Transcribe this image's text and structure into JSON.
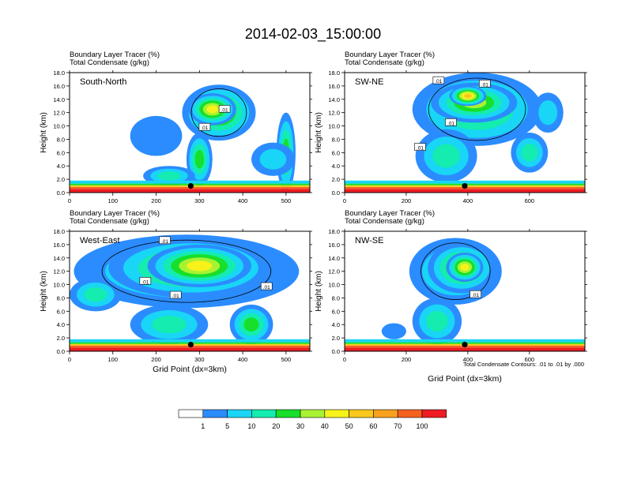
{
  "title": "2014-02-03_15:00:00",
  "panel_header_line1": "Boundary Layer Tracer   (%)",
  "panel_header_line2": "Total Condensate   (g/kg)",
  "contour_note": "Total Condensate Contours: .01 to .01 by .000",
  "chart_data": [
    {
      "type": "heatmap",
      "panel_label": "South-North",
      "title": "Boundary Layer Tracer (%) / Total Condensate (g/kg)",
      "xlabel": "",
      "ylabel": "Height (km)",
      "xlim": [
        0,
        555
      ],
      "ylim": [
        0,
        18
      ],
      "xticks": [
        0,
        100,
        200,
        300,
        400,
        500
      ],
      "yticks": [
        "0.0",
        "2.0",
        "4.0",
        "6.0",
        "8.0",
        "10.0",
        "12.0",
        "14.0",
        "16.0",
        "18.0"
      ],
      "marker": {
        "x": 280,
        "y": 1.0
      },
      "contour_labels": [
        {
          "text": ".01",
          "x": 358,
          "y": 12.5
        },
        {
          "text": ".01",
          "x": 312,
          "y": 9.8
        }
      ],
      "clouds": [
        {
          "x": 345,
          "y": 12.0,
          "rx": 85,
          "ry": 4.2,
          "level": 5
        },
        {
          "x": 330,
          "y": 12.5,
          "rx": 55,
          "ry": 2.4,
          "level": 6
        },
        {
          "x": 300,
          "y": 5.0,
          "rx": 30,
          "ry": 4.0,
          "level": 4
        },
        {
          "x": 200,
          "y": 8.5,
          "rx": 60,
          "ry": 3.0,
          "level": 1
        },
        {
          "x": 500,
          "y": 6.0,
          "rx": 22,
          "ry": 6.0,
          "level": 4
        },
        {
          "x": 470,
          "y": 5.0,
          "rx": 50,
          "ry": 2.5,
          "level": 2
        },
        {
          "x": 230,
          "y": 2.5,
          "rx": 60,
          "ry": 1.5,
          "level": 3
        }
      ]
    },
    {
      "type": "heatmap",
      "panel_label": "SW-NE",
      "title": "Boundary Layer Tracer (%) / Total Condensate (g/kg)",
      "xlabel": "",
      "ylabel": "Height (km)",
      "xlim": [
        0,
        780
      ],
      "ylim": [
        0,
        18
      ],
      "xticks": [
        0,
        200,
        400,
        600
      ],
      "yticks": [
        "0.0",
        "2.0",
        "4.0",
        "6.0",
        "8.0",
        "10.0",
        "12.0",
        "14.0",
        "16.0",
        "18.0"
      ],
      "marker": {
        "x": 390,
        "y": 1.0
      },
      "contour_labels": [
        {
          "text": ".01",
          "x": 305,
          "y": 16.8
        },
        {
          "text": ".01",
          "x": 455,
          "y": 16.3
        },
        {
          "text": ".01",
          "x": 345,
          "y": 10.5
        },
        {
          "text": ".01",
          "x": 245,
          "y": 6.8
        }
      ],
      "clouds": [
        {
          "x": 430,
          "y": 12.5,
          "rx": 210,
          "ry": 5.5,
          "level": 4
        },
        {
          "x": 420,
          "y": 13.5,
          "rx": 140,
          "ry": 3.0,
          "level": 5
        },
        {
          "x": 400,
          "y": 14.5,
          "rx": 60,
          "ry": 1.5,
          "level": 7
        },
        {
          "x": 330,
          "y": 5.5,
          "rx": 100,
          "ry": 4.0,
          "level": 3
        },
        {
          "x": 600,
          "y": 6.0,
          "rx": 60,
          "ry": 3.0,
          "level": 3
        },
        {
          "x": 660,
          "y": 12.0,
          "rx": 50,
          "ry": 3.0,
          "level": 2
        }
      ]
    },
    {
      "type": "heatmap",
      "panel_label": "West-East",
      "title": "Boundary Layer Tracer (%) / Total Condensate (g/kg)",
      "xlabel": "Grid Point (dx=3km)",
      "ylabel": "Height (km)",
      "xlim": [
        0,
        555
      ],
      "ylim": [
        0,
        18
      ],
      "xticks": [
        0,
        100,
        200,
        300,
        400,
        500
      ],
      "yticks": [
        "0.0",
        "2.0",
        "4.0",
        "6.0",
        "8.0",
        "10.0",
        "12.0",
        "14.0",
        "16.0",
        "18.0"
      ],
      "marker": {
        "x": 280,
        "y": 1.0
      },
      "contour_labels": [
        {
          "text": ".01",
          "x": 220,
          "y": 16.6
        },
        {
          "text": ".01",
          "x": 175,
          "y": 10.5
        },
        {
          "text": ".01",
          "x": 245,
          "y": 8.4
        },
        {
          "text": ".01",
          "x": 455,
          "y": 9.7
        }
      ],
      "clouds": [
        {
          "x": 270,
          "y": 12.0,
          "rx": 260,
          "ry": 5.5,
          "level": 3
        },
        {
          "x": 280,
          "y": 12.5,
          "rx": 190,
          "ry": 4.5,
          "level": 5
        },
        {
          "x": 300,
          "y": 12.8,
          "rx": 120,
          "ry": 3.2,
          "level": 6
        },
        {
          "x": 230,
          "y": 4.0,
          "rx": 90,
          "ry": 3.0,
          "level": 3
        },
        {
          "x": 420,
          "y": 4.0,
          "rx": 50,
          "ry": 3.0,
          "level": 4
        },
        {
          "x": 60,
          "y": 8.5,
          "rx": 60,
          "ry": 2.5,
          "level": 3
        }
      ]
    },
    {
      "type": "heatmap",
      "panel_label": "NW-SE",
      "title": "Boundary Layer Tracer (%) / Total Condensate (g/kg)",
      "xlabel": "Grid Point (dx=3km)",
      "ylabel": "Height (km)",
      "xlim": [
        0,
        780
      ],
      "ylim": [
        0,
        18
      ],
      "xticks": [
        0,
        200,
        400,
        600
      ],
      "yticks": [
        "0.0",
        "2.0",
        "4.0",
        "6.0",
        "8.0",
        "10.0",
        "12.0",
        "14.0",
        "16.0",
        "18.0"
      ],
      "marker": {
        "x": 390,
        "y": 1.0
      },
      "contour_labels": [
        {
          "text": ".01",
          "x": 425,
          "y": 8.5
        }
      ],
      "clouds": [
        {
          "x": 360,
          "y": 12.0,
          "rx": 150,
          "ry": 5.0,
          "level": 3
        },
        {
          "x": 380,
          "y": 12.5,
          "rx": 110,
          "ry": 3.8,
          "level": 5
        },
        {
          "x": 390,
          "y": 12.6,
          "rx": 60,
          "ry": 2.2,
          "level": 6
        },
        {
          "x": 300,
          "y": 4.5,
          "rx": 80,
          "ry": 3.5,
          "level": 3
        },
        {
          "x": 160,
          "y": 3.0,
          "rx": 40,
          "ry": 1.2,
          "level": 1
        }
      ]
    }
  ],
  "colorbar": {
    "colors": [
      "#ffffff",
      "#2b8cff",
      "#19d5f6",
      "#14ecb0",
      "#18df2a",
      "#a8f232",
      "#f7f21a",
      "#f8c81c",
      "#f8a11c",
      "#f6611f",
      "#ef1c23"
    ],
    "labels": [
      "1",
      "5",
      "10",
      "20",
      "30",
      "40",
      "50",
      "60",
      "70",
      "100"
    ]
  },
  "surface_colors": [
    "#ef1c23",
    "#f6611f",
    "#f8c81c",
    "#18df2a",
    "#19d5f6"
  ]
}
